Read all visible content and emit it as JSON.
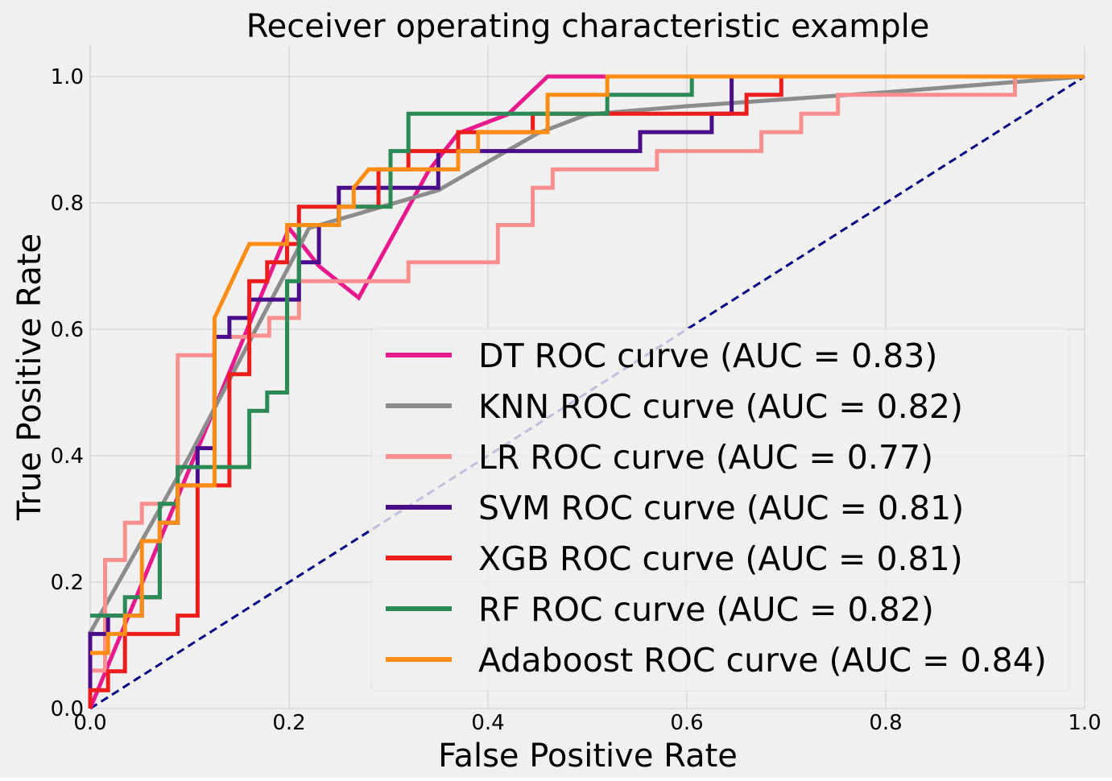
{
  "chart_data": {
    "type": "line",
    "title": "Receiver operating characteristic example",
    "xlabel": "False Positive Rate",
    "ylabel": "True Positive Rate",
    "xlim": [
      0,
      1
    ],
    "ylim": [
      0,
      1
    ],
    "grid": true,
    "legend_position": "lower-right",
    "x_ticks": [
      {
        "value": 0.0,
        "label": "0.0"
      },
      {
        "value": 0.2,
        "label": "0.2"
      },
      {
        "value": 0.4,
        "label": "0.4"
      },
      {
        "value": 0.6,
        "label": "0.6"
      },
      {
        "value": 0.8,
        "label": "0.8"
      },
      {
        "value": 1.0,
        "label": "1.0"
      }
    ],
    "y_ticks": [
      {
        "value": 0.0,
        "label": "0.0"
      },
      {
        "value": 0.2,
        "label": "0.2"
      },
      {
        "value": 0.4,
        "label": "0.4"
      },
      {
        "value": 0.6,
        "label": "0.6"
      },
      {
        "value": 0.8,
        "label": "0.8"
      },
      {
        "value": 1.0,
        "label": "1.0"
      }
    ],
    "baseline": {
      "name": "chance",
      "color": "#000080",
      "points": [
        [
          0,
          0
        ],
        [
          1,
          1
        ]
      ]
    },
    "series": [
      {
        "name": "DT",
        "label": "DT ROC curve (AUC = 0.83)",
        "color": "#e7198c",
        "points": [
          [
            0,
            0
          ],
          [
            0.2,
            0.76
          ],
          [
            0.23,
            0.7
          ],
          [
            0.27,
            0.65
          ],
          [
            0.34,
            0.85
          ],
          [
            0.37,
            0.91
          ],
          [
            0.42,
            0.94
          ],
          [
            0.46,
            1.0
          ],
          [
            1,
            1
          ]
        ]
      },
      {
        "name": "KNN",
        "label": "KNN ROC curve (AUC = 0.82)",
        "color": "#8c8c8c",
        "points": [
          [
            0,
            0.12
          ],
          [
            0.1,
            0.4
          ],
          [
            0.22,
            0.76
          ],
          [
            0.35,
            0.82
          ],
          [
            0.45,
            0.91
          ],
          [
            0.5,
            0.94
          ],
          [
            0.6,
            0.953
          ],
          [
            0.8,
            0.975
          ],
          [
            1,
            1
          ]
        ]
      },
      {
        "name": "LR",
        "label": "LR ROC curve (AUC = 0.77)",
        "color": "#fa8f8f",
        "points": [
          [
            0,
            0.06
          ],
          [
            0.015,
            0.06
          ],
          [
            0.015,
            0.235
          ],
          [
            0.035,
            0.235
          ],
          [
            0.035,
            0.294
          ],
          [
            0.052,
            0.294
          ],
          [
            0.052,
            0.324
          ],
          [
            0.088,
            0.324
          ],
          [
            0.088,
            0.559
          ],
          [
            0.125,
            0.559
          ],
          [
            0.125,
            0.588
          ],
          [
            0.16,
            0.588
          ],
          [
            0.16,
            0.59
          ],
          [
            0.18,
            0.59
          ],
          [
            0.18,
            0.618
          ],
          [
            0.21,
            0.618
          ],
          [
            0.21,
            0.676
          ],
          [
            0.32,
            0.676
          ],
          [
            0.32,
            0.706
          ],
          [
            0.41,
            0.706
          ],
          [
            0.41,
            0.765
          ],
          [
            0.445,
            0.765
          ],
          [
            0.445,
            0.824
          ],
          [
            0.465,
            0.824
          ],
          [
            0.465,
            0.853
          ],
          [
            0.57,
            0.853
          ],
          [
            0.57,
            0.882
          ],
          [
            0.675,
            0.882
          ],
          [
            0.675,
            0.912
          ],
          [
            0.715,
            0.912
          ],
          [
            0.715,
            0.941
          ],
          [
            0.752,
            0.941
          ],
          [
            0.752,
            0.971
          ],
          [
            0.93,
            0.971
          ],
          [
            0.93,
            1.0
          ],
          [
            1,
            1
          ]
        ]
      },
      {
        "name": "SVM",
        "label": "SVM ROC curve (AUC = 0.81)",
        "color": "#4b0c8c",
        "points": [
          [
            0,
            0
          ],
          [
            0,
            0.118
          ],
          [
            0.018,
            0.118
          ],
          [
            0.018,
            0.147
          ],
          [
            0.052,
            0.147
          ],
          [
            0.052,
            0.176
          ],
          [
            0.07,
            0.176
          ],
          [
            0.07,
            0.294
          ],
          [
            0.088,
            0.294
          ],
          [
            0.088,
            0.353
          ],
          [
            0.108,
            0.353
          ],
          [
            0.108,
            0.412
          ],
          [
            0.125,
            0.412
          ],
          [
            0.125,
            0.588
          ],
          [
            0.14,
            0.588
          ],
          [
            0.14,
            0.618
          ],
          [
            0.16,
            0.618
          ],
          [
            0.16,
            0.647
          ],
          [
            0.21,
            0.647
          ],
          [
            0.21,
            0.706
          ],
          [
            0.23,
            0.706
          ],
          [
            0.23,
            0.765
          ],
          [
            0.25,
            0.765
          ],
          [
            0.25,
            0.824
          ],
          [
            0.35,
            0.824
          ],
          [
            0.35,
            0.882
          ],
          [
            0.553,
            0.882
          ],
          [
            0.553,
            0.912
          ],
          [
            0.625,
            0.912
          ],
          [
            0.625,
            0.941
          ],
          [
            0.645,
            0.941
          ],
          [
            0.645,
            0.971
          ],
          [
            0.645,
            1.0
          ],
          [
            1,
            1
          ]
        ]
      },
      {
        "name": "XGB",
        "label": "XGB ROC curve (AUC = 0.81)",
        "color": "#ee1d1d",
        "points": [
          [
            0,
            0
          ],
          [
            0,
            0.029
          ],
          [
            0.018,
            0.029
          ],
          [
            0.018,
            0.059
          ],
          [
            0.035,
            0.059
          ],
          [
            0.035,
            0.118
          ],
          [
            0.088,
            0.118
          ],
          [
            0.088,
            0.147
          ],
          [
            0.108,
            0.147
          ],
          [
            0.108,
            0.353
          ],
          [
            0.14,
            0.353
          ],
          [
            0.14,
            0.529
          ],
          [
            0.16,
            0.529
          ],
          [
            0.16,
            0.676
          ],
          [
            0.178,
            0.676
          ],
          [
            0.178,
            0.706
          ],
          [
            0.198,
            0.706
          ],
          [
            0.198,
            0.735
          ],
          [
            0.21,
            0.735
          ],
          [
            0.21,
            0.794
          ],
          [
            0.29,
            0.794
          ],
          [
            0.29,
            0.853
          ],
          [
            0.32,
            0.853
          ],
          [
            0.32,
            0.882
          ],
          [
            0.37,
            0.882
          ],
          [
            0.37,
            0.912
          ],
          [
            0.445,
            0.912
          ],
          [
            0.445,
            0.941
          ],
          [
            0.52,
            0.941
          ],
          [
            0.52,
            0.941
          ],
          [
            0.66,
            0.941
          ],
          [
            0.66,
            0.971
          ],
          [
            0.695,
            0.971
          ],
          [
            0.695,
            1.0
          ],
          [
            1,
            1
          ]
        ]
      },
      {
        "name": "RF",
        "label": "RF ROC curve (AUC = 0.82)",
        "color": "#2c8a57",
        "points": [
          [
            0,
            0.147
          ],
          [
            0.035,
            0.147
          ],
          [
            0.035,
            0.176
          ],
          [
            0.07,
            0.176
          ],
          [
            0.07,
            0.324
          ],
          [
            0.088,
            0.324
          ],
          [
            0.088,
            0.382
          ],
          [
            0.16,
            0.382
          ],
          [
            0.16,
            0.471
          ],
          [
            0.178,
            0.471
          ],
          [
            0.178,
            0.5
          ],
          [
            0.198,
            0.5
          ],
          [
            0.198,
            0.676
          ],
          [
            0.21,
            0.676
          ],
          [
            0.21,
            0.765
          ],
          [
            0.25,
            0.765
          ],
          [
            0.25,
            0.794
          ],
          [
            0.302,
            0.794
          ],
          [
            0.302,
            0.882
          ],
          [
            0.32,
            0.882
          ],
          [
            0.32,
            0.941
          ],
          [
            0.52,
            0.941
          ],
          [
            0.52,
            0.971
          ],
          [
            0.605,
            0.971
          ],
          [
            0.605,
            1.0
          ],
          [
            1,
            1
          ]
        ]
      },
      {
        "name": "Adaboost",
        "label": "Adaboost ROC curve (AUC = 0.84)",
        "color": "#ff8c14",
        "points": [
          [
            0,
            0.088
          ],
          [
            0.018,
            0.088
          ],
          [
            0.018,
            0.118
          ],
          [
            0.035,
            0.118
          ],
          [
            0.035,
            0.147
          ],
          [
            0.052,
            0.147
          ],
          [
            0.052,
            0.265
          ],
          [
            0.07,
            0.265
          ],
          [
            0.07,
            0.294
          ],
          [
            0.088,
            0.294
          ],
          [
            0.088,
            0.353
          ],
          [
            0.125,
            0.353
          ],
          [
            0.125,
            0.618
          ],
          [
            0.16,
            0.735
          ],
          [
            0.198,
            0.735
          ],
          [
            0.198,
            0.765
          ],
          [
            0.25,
            0.765
          ],
          [
            0.25,
            0.794
          ],
          [
            0.265,
            0.794
          ],
          [
            0.265,
            0.824
          ],
          [
            0.28,
            0.853
          ],
          [
            0.37,
            0.853
          ],
          [
            0.37,
            0.882
          ],
          [
            0.39,
            0.882
          ],
          [
            0.39,
            0.912
          ],
          [
            0.46,
            0.912
          ],
          [
            0.46,
            0.971
          ],
          [
            0.52,
            0.971
          ],
          [
            0.52,
            1.0
          ],
          [
            1,
            1
          ]
        ]
      }
    ]
  }
}
